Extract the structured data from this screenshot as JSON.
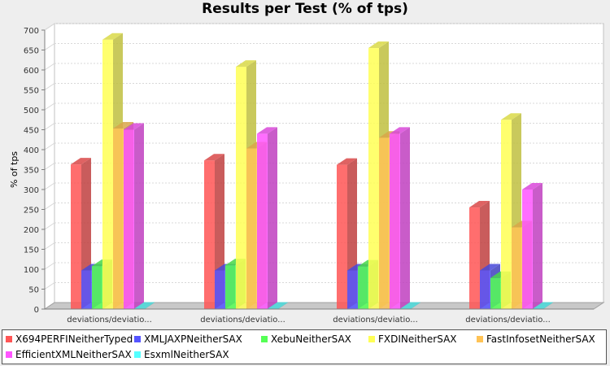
{
  "chart_data": {
    "type": "bar",
    "title": "Results per Test (% of tps)",
    "ylabel": "% of tps",
    "xlabel": "",
    "ylim": [
      0,
      700
    ],
    "yticks": [
      0,
      50,
      100,
      150,
      200,
      250,
      300,
      350,
      400,
      450,
      500,
      550,
      600,
      650,
      700
    ],
    "grid": true,
    "legend_position": "bottom",
    "categories": [
      "deviations/deviatio...",
      "deviations/deviatio...",
      "deviations/deviatio...",
      "deviations/deviatio..."
    ],
    "series": [
      {
        "name": "X694PERFINeitherTyped",
        "color": "#ff5555",
        "values": [
          363,
          373,
          362,
          255
        ]
      },
      {
        "name": "XMLJAXPNeitherSAX",
        "color": "#5555ff",
        "values": [
          97,
          97,
          97,
          97
        ]
      },
      {
        "name": "XebuNeitherSAX",
        "color": "#55ff55",
        "values": [
          108,
          110,
          107,
          78
        ]
      },
      {
        "name": "FXDINeitherSAX",
        "color": "#ffff55",
        "values": [
          676,
          608,
          655,
          475
        ]
      },
      {
        "name": "FastInfosetNeitherSAX",
        "color": "#ffc355",
        "values": [
          453,
          403,
          430,
          205
        ]
      },
      {
        "name": "EfficientXMLNeitherSAX",
        "color": "#ff55ff",
        "values": [
          450,
          440,
          440,
          300
        ]
      },
      {
        "name": "EsxmlNeitherSAX",
        "color": "#55ffff",
        "values": [
          0,
          0,
          0,
          0
        ]
      }
    ]
  }
}
